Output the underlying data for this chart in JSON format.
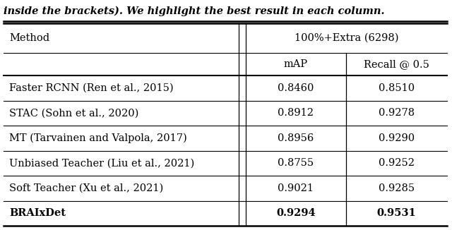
{
  "caption": "inside the brackets). We highlight the best result in each column.",
  "header_group": "100%+Extra (6298)",
  "col1_header": "Method",
  "col2_header": "mAP",
  "col3_header": "Recall @ 0.5",
  "rows": [
    {
      "method": "Faster RCNN (Ren et al., 2015)",
      "mAP": "0.8460",
      "recall": "0.8510",
      "bold": false
    },
    {
      "method": "STAC (Sohn et al., 2020)",
      "mAP": "0.8912",
      "recall": "0.9278",
      "bold": false
    },
    {
      "method": "MT (Tarvainen and Valpola, 2017)",
      "mAP": "0.8956",
      "recall": "0.9290",
      "bold": false
    },
    {
      "method": "Unbiased Teacher (Liu et al., 2021)",
      "mAP": "0.8755",
      "recall": "0.9252",
      "bold": false
    },
    {
      "method": "Soft Teacher (Xu et al., 2021)",
      "mAP": "0.9021",
      "recall": "0.9285",
      "bold": false
    },
    {
      "method": "BRAIxDet",
      "mAP": "0.9294",
      "recall": "0.9531",
      "bold": true
    }
  ],
  "figsize": [
    6.4,
    3.26
  ],
  "dpi": 100,
  "caption_fontsize": 10.5,
  "header_fontsize": 10.5,
  "data_fontsize": 10.5
}
